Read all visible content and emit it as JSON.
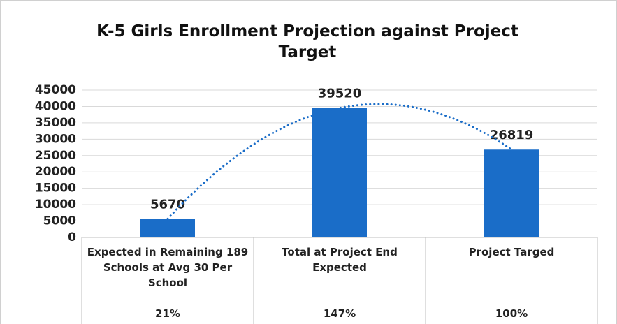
{
  "chart_data": {
    "type": "bar",
    "title": "K-5 Girls Enrollment Projection against Project Target",
    "categories": [
      "Expected in Remaining 189 Schools at Avg 30 Per School",
      "Total at Project End Expected",
      "Project Targed"
    ],
    "subcategories": [
      "21%",
      "147%",
      "100%"
    ],
    "values": [
      5670,
      39520,
      26819
    ],
    "color": "#1a6dc8",
    "trendline": "polynomial",
    "ylim": [
      0,
      45000
    ],
    "yticks": [
      0,
      5000,
      10000,
      15000,
      20000,
      25000,
      30000,
      35000,
      40000,
      45000
    ],
    "grid": true
  }
}
